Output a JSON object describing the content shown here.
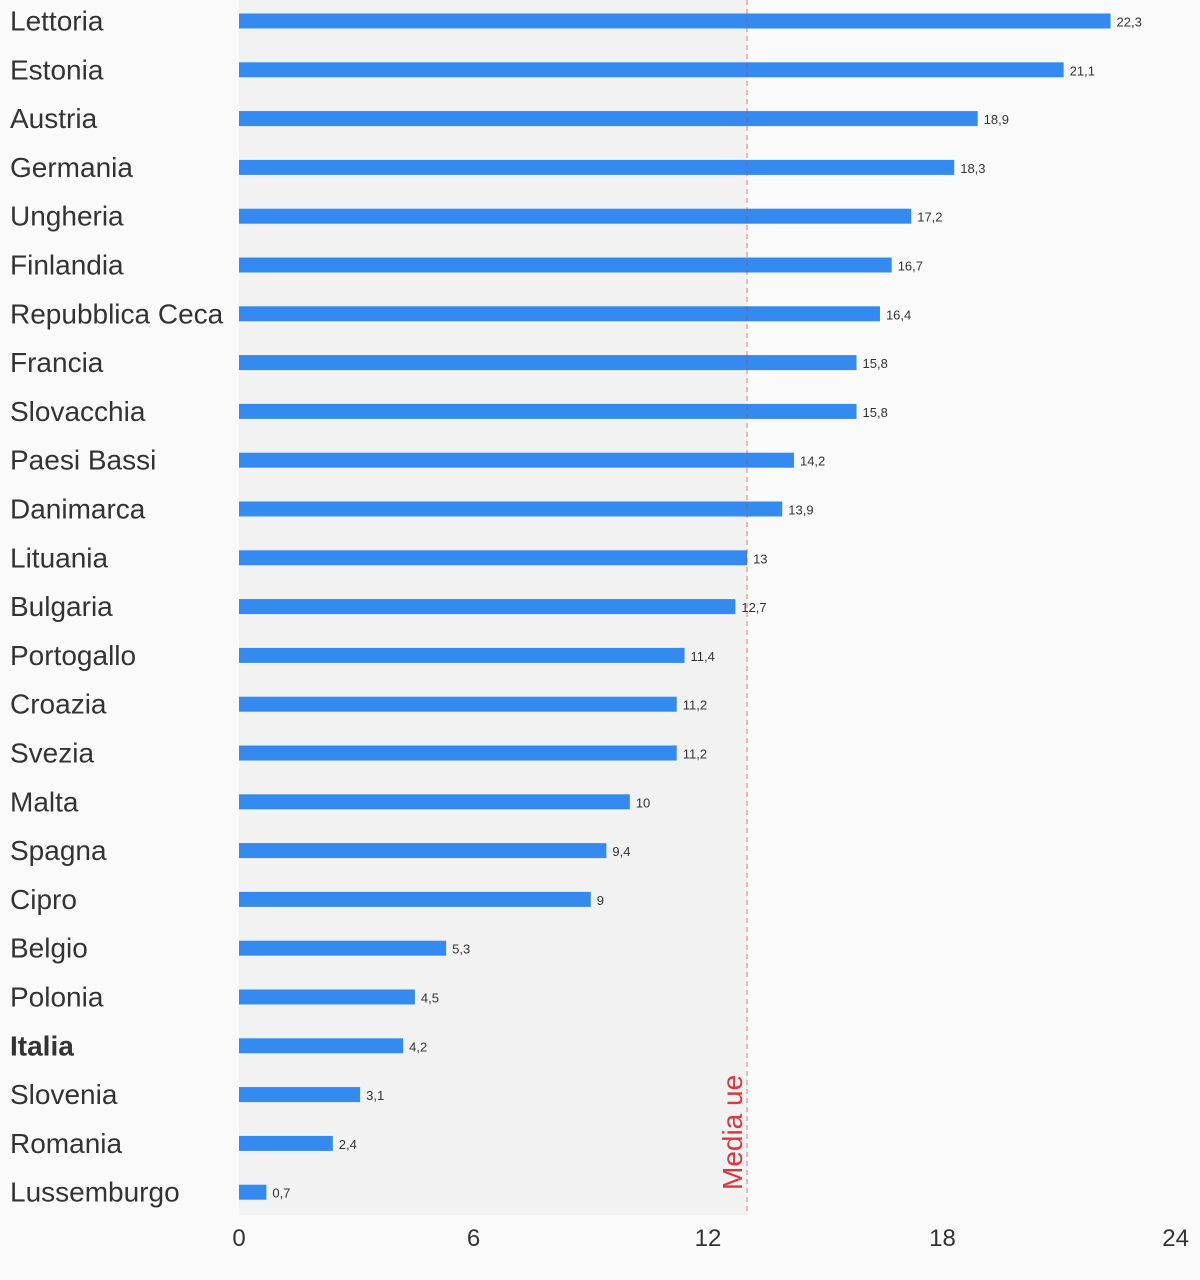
{
  "chart_data": {
    "type": "bar",
    "orientation": "horizontal",
    "categories": [
      "Lettoria",
      "Estonia",
      "Austria",
      "Germania",
      "Ungheria",
      "Finlandia",
      "Repubblica Ceca",
      "Francia",
      "Slovacchia",
      "Paesi Bassi",
      "Danimarca",
      "Lituania",
      "Bulgaria",
      "Portogallo",
      "Croazia",
      "Svezia",
      "Malta",
      "Spagna",
      "Cipro",
      "Belgio",
      "Polonia",
      "Italia",
      "Slovenia",
      "Romania",
      "Lussemburgo"
    ],
    "values": [
      22.3,
      21.1,
      18.9,
      18.3,
      17.2,
      16.7,
      16.4,
      15.8,
      15.8,
      14.2,
      13.9,
      13,
      12.7,
      11.4,
      11.2,
      11.2,
      10,
      9.4,
      9,
      5.3,
      4.5,
      4.2,
      3.1,
      2.4,
      0.7
    ],
    "value_labels": [
      "22,3",
      "21,1",
      "18,9",
      "18,3",
      "17,2",
      "16,7",
      "16,4",
      "15,8",
      "15,8",
      "14,2",
      "13,9",
      "13",
      "12,7",
      "11,4",
      "11,2",
      "11,2",
      "10",
      "9,4",
      "9",
      "5,3",
      "4,5",
      "4,2",
      "3,1",
      "2,4",
      "0,7"
    ],
    "highlight_category": "Italia",
    "xlim": [
      0,
      24
    ],
    "xticks": [
      0,
      6,
      12,
      18,
      24
    ],
    "xtick_labels": [
      "0",
      "6",
      "12",
      "18",
      "24"
    ],
    "average": {
      "value": 13,
      "label": "Media ue"
    },
    "colors": {
      "bar": "#348aee",
      "average": "#d9393e",
      "shade": "#f2f2f2",
      "background": "#fafafa",
      "text": "#333333"
    },
    "grid": false,
    "legend": "none"
  }
}
